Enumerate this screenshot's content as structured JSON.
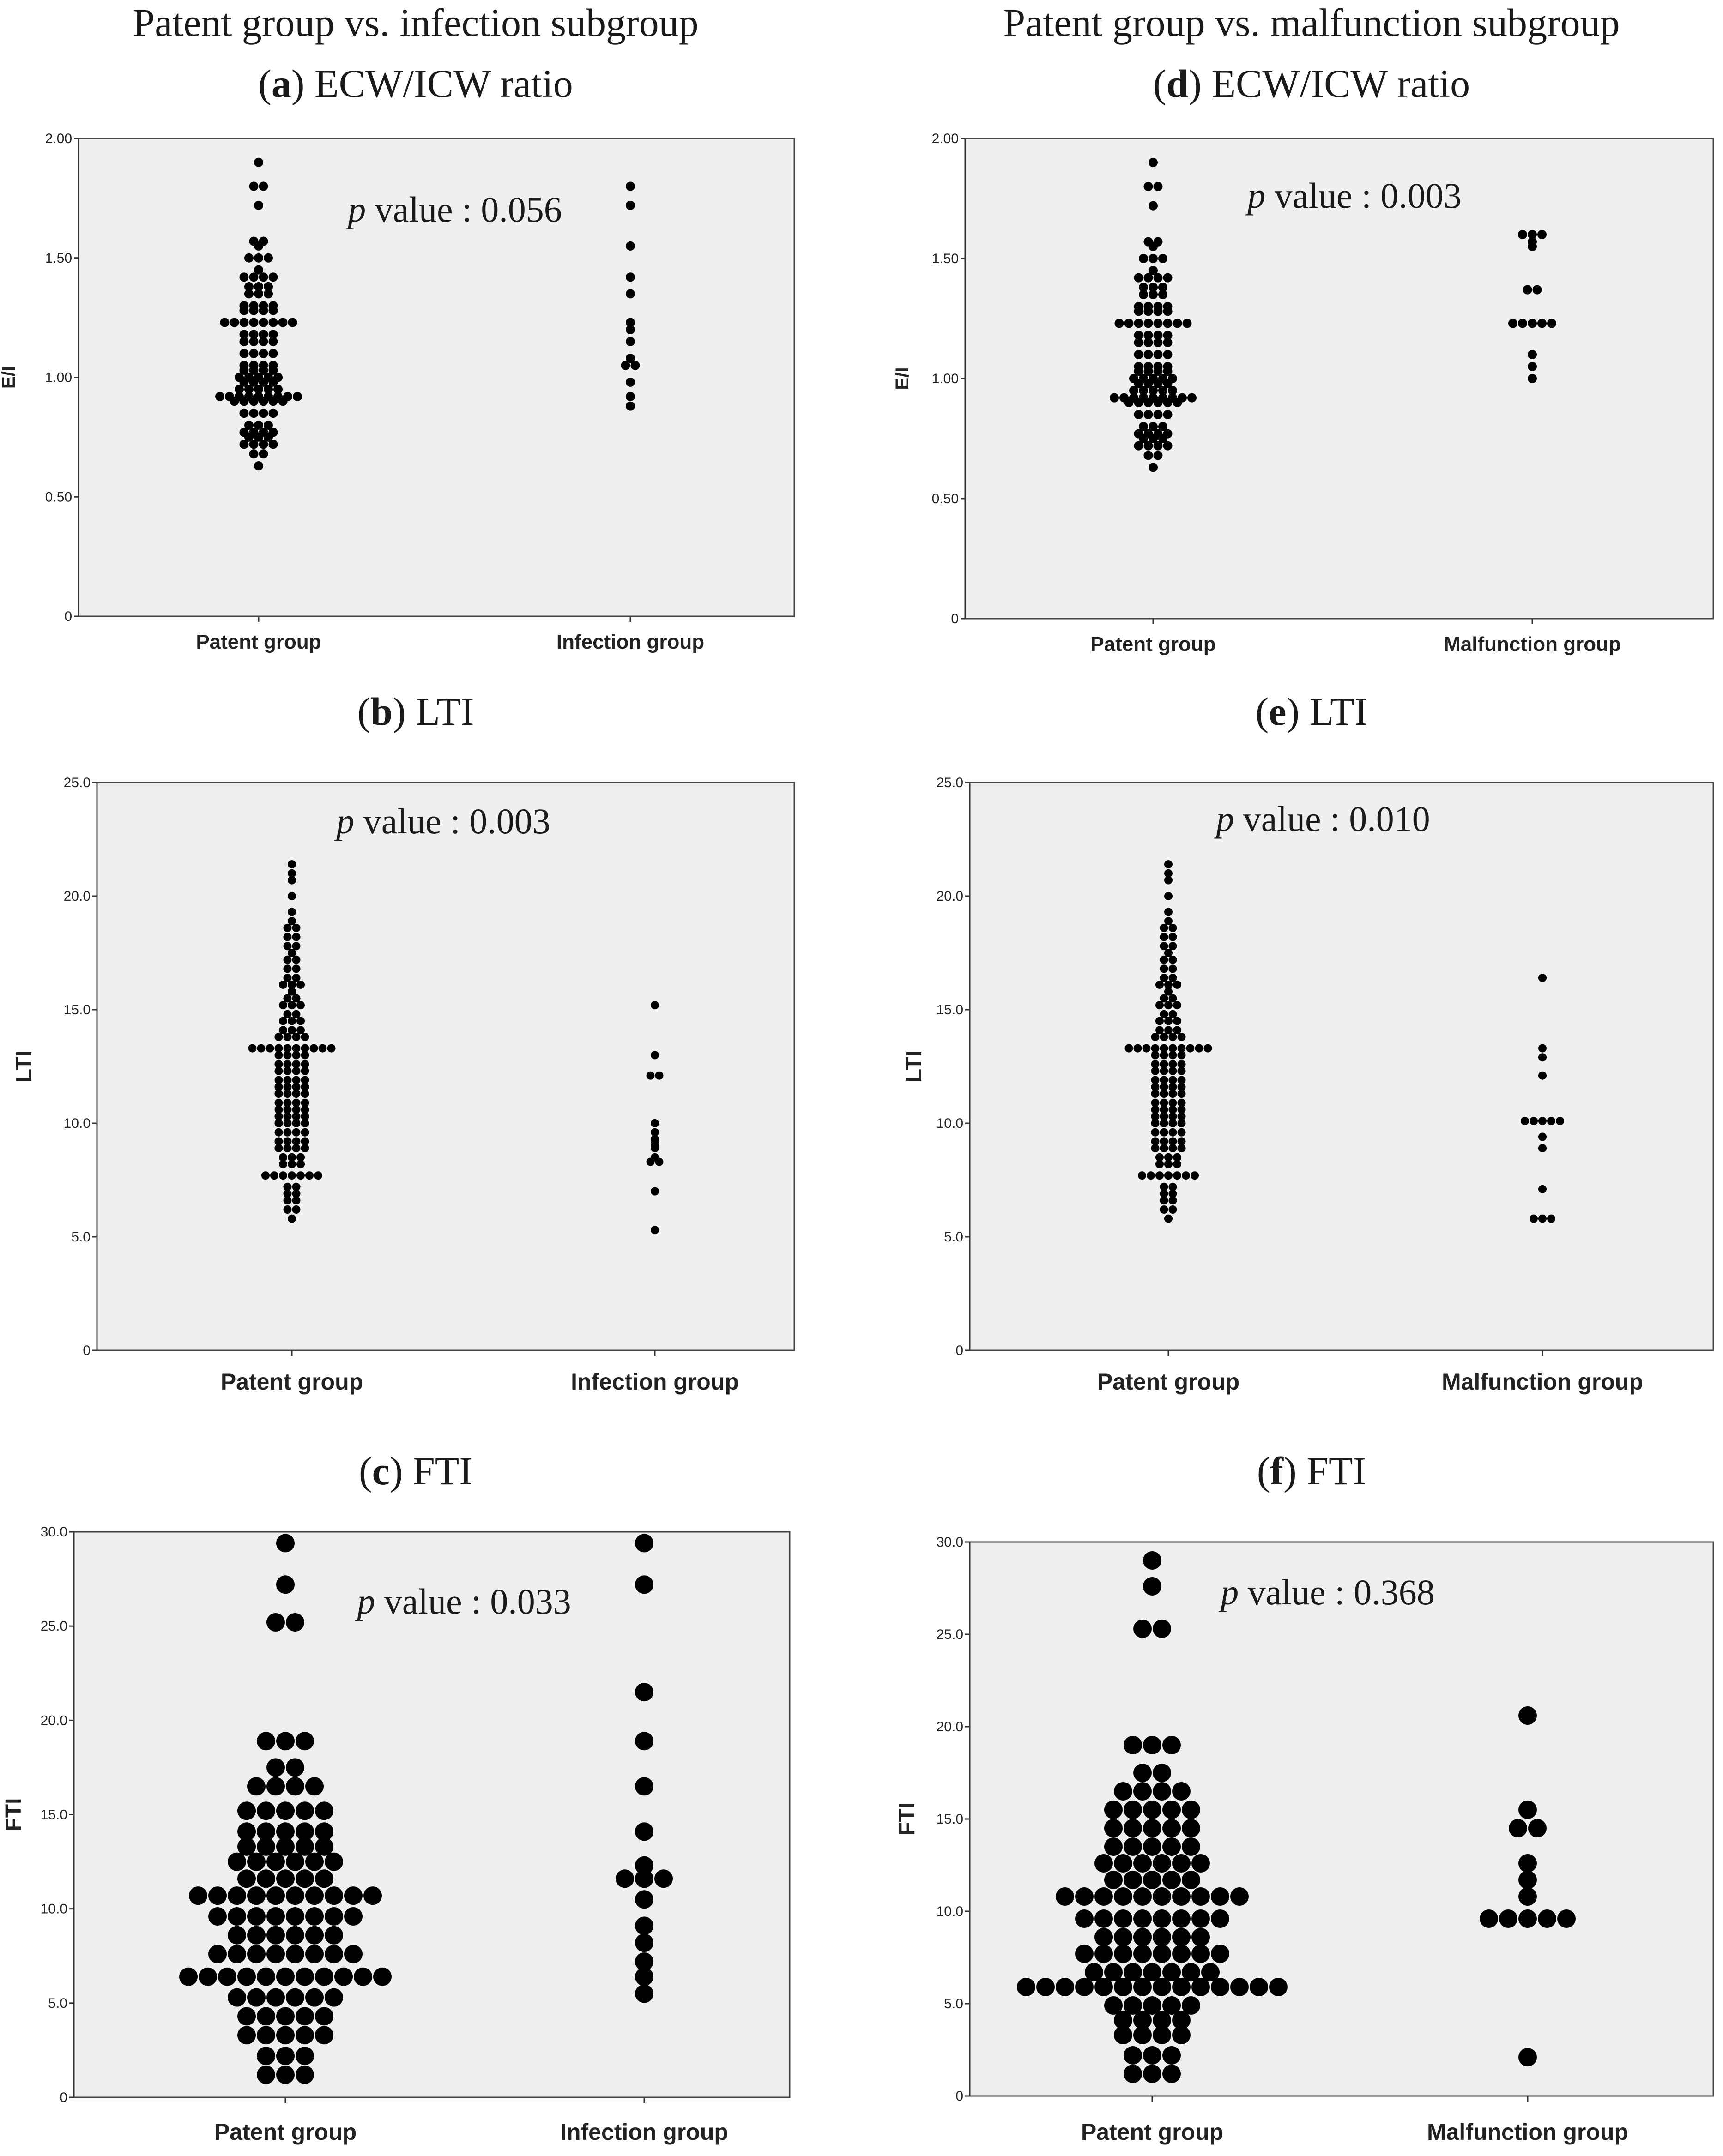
{
  "column_titles": [
    "Patent group vs. infection subgroup",
    "Patent group vs. malfunction subgroup"
  ],
  "chart_data": [
    {
      "id": "a",
      "letter": "a",
      "title": "ECW/ICW ratio",
      "type": "scatter",
      "ylabel": "E/I",
      "ylim": [
        0,
        2.0
      ],
      "yticks": [
        0,
        0.5,
        1.0,
        1.5,
        2.0
      ],
      "ytick_labels": [
        "0",
        "0.50",
        "1.00",
        "1.50",
        "2.00"
      ],
      "categories": [
        "Patent group",
        "Infection group"
      ],
      "p_prefix": "p",
      "p_text": " value : 0.056",
      "series": [
        {
          "name": "Patent group",
          "values": [
            1.9,
            1.8,
            1.8,
            1.72,
            1.57,
            1.57,
            1.55,
            1.5,
            1.5,
            1.5,
            1.45,
            1.42,
            1.42,
            1.42,
            1.42,
            1.38,
            1.38,
            1.38,
            1.35,
            1.35,
            1.35,
            1.3,
            1.3,
            1.3,
            1.3,
            1.28,
            1.28,
            1.28,
            1.28,
            1.23,
            1.23,
            1.23,
            1.23,
            1.23,
            1.23,
            1.23,
            1.23,
            1.18,
            1.18,
            1.18,
            1.18,
            1.15,
            1.15,
            1.15,
            1.15,
            1.1,
            1.1,
            1.1,
            1.1,
            1.05,
            1.05,
            1.05,
            1.05,
            1.03,
            1.03,
            1.03,
            1.03,
            1.0,
            1.0,
            1.0,
            1.0,
            1.0,
            0.98,
            0.98,
            0.98,
            0.98,
            0.95,
            0.95,
            0.95,
            0.95,
            0.95,
            0.92,
            0.92,
            0.92,
            0.92,
            0.92,
            0.92,
            0.92,
            0.92,
            0.92,
            0.9,
            0.9,
            0.9,
            0.9,
            0.9,
            0.9,
            0.85,
            0.85,
            0.85,
            0.85,
            0.8,
            0.8,
            0.8,
            0.77,
            0.77,
            0.77,
            0.77,
            0.75,
            0.75,
            0.75,
            0.72,
            0.72,
            0.72,
            0.72,
            0.68,
            0.68,
            0.63
          ]
        },
        {
          "name": "Infection group",
          "values": [
            1.8,
            1.72,
            1.55,
            1.42,
            1.35,
            1.23,
            1.2,
            1.15,
            1.08,
            1.05,
            1.05,
            0.98,
            0.92,
            0.88
          ]
        }
      ]
    },
    {
      "id": "d",
      "letter": "d",
      "title": "ECW/ICW ratio",
      "type": "scatter",
      "ylabel": "E/I",
      "ylim": [
        0,
        2.0
      ],
      "yticks": [
        0,
        0.5,
        1.0,
        1.5,
        2.0
      ],
      "ytick_labels": [
        "0",
        "0.50",
        "1.00",
        "1.50",
        "2.00"
      ],
      "categories": [
        "Patent group",
        "Malfunction group"
      ],
      "p_prefix": "p",
      "p_text": " value : 0.003",
      "series": [
        {
          "name": "Patent group",
          "values": [
            1.9,
            1.8,
            1.8,
            1.72,
            1.57,
            1.57,
            1.55,
            1.5,
            1.5,
            1.5,
            1.45,
            1.42,
            1.42,
            1.42,
            1.42,
            1.38,
            1.38,
            1.38,
            1.35,
            1.35,
            1.35,
            1.3,
            1.3,
            1.3,
            1.3,
            1.28,
            1.28,
            1.28,
            1.28,
            1.23,
            1.23,
            1.23,
            1.23,
            1.23,
            1.23,
            1.23,
            1.23,
            1.18,
            1.18,
            1.18,
            1.18,
            1.15,
            1.15,
            1.15,
            1.15,
            1.1,
            1.1,
            1.1,
            1.1,
            1.05,
            1.05,
            1.05,
            1.05,
            1.03,
            1.03,
            1.03,
            1.03,
            1.0,
            1.0,
            1.0,
            1.0,
            1.0,
            0.98,
            0.98,
            0.98,
            0.98,
            0.95,
            0.95,
            0.95,
            0.95,
            0.95,
            0.92,
            0.92,
            0.92,
            0.92,
            0.92,
            0.92,
            0.92,
            0.92,
            0.92,
            0.9,
            0.9,
            0.9,
            0.9,
            0.9,
            0.9,
            0.85,
            0.85,
            0.85,
            0.85,
            0.8,
            0.8,
            0.8,
            0.77,
            0.77,
            0.77,
            0.77,
            0.75,
            0.75,
            0.75,
            0.72,
            0.72,
            0.72,
            0.72,
            0.68,
            0.68,
            0.63
          ]
        },
        {
          "name": "Malfunction group",
          "values": [
            1.6,
            1.6,
            1.6,
            1.57,
            1.55,
            1.37,
            1.37,
            1.23,
            1.23,
            1.23,
            1.23,
            1.23,
            1.1,
            1.05,
            1.0
          ]
        }
      ]
    },
    {
      "id": "b",
      "letter": "b",
      "title": "LTI",
      "type": "scatter",
      "ylabel": "LTI",
      "ylim": [
        0,
        25.0
      ],
      "yticks": [
        0,
        5,
        10,
        15,
        20,
        25
      ],
      "ytick_labels": [
        "0",
        "5.0",
        "10.0",
        "15.0",
        "20.0",
        "25.0"
      ],
      "categories": [
        "Patent group",
        "Infection group"
      ],
      "p_prefix": "p",
      "p_text": " value : 0.003",
      "series": [
        {
          "name": "Patent group",
          "values": [
            21.4,
            21.0,
            20.7,
            20.0,
            19.3,
            18.9,
            18.6,
            18.6,
            18.2,
            18.2,
            17.8,
            17.8,
            17.5,
            17.2,
            17.2,
            16.8,
            16.8,
            16.4,
            16.4,
            16.1,
            16.1,
            16.1,
            15.8,
            15.5,
            15.5,
            15.2,
            15.2,
            15.2,
            14.8,
            14.8,
            14.5,
            14.5,
            14.5,
            14.1,
            14.1,
            14.1,
            13.8,
            13.8,
            13.8,
            13.8,
            13.3,
            13.3,
            13.3,
            13.3,
            13.3,
            13.3,
            13.3,
            13.3,
            13.3,
            13.3,
            13.0,
            13.0,
            13.0,
            13.0,
            12.6,
            12.6,
            12.6,
            12.6,
            12.3,
            12.3,
            12.3,
            12.3,
            11.9,
            11.9,
            11.9,
            11.9,
            11.6,
            11.6,
            11.6,
            11.6,
            11.3,
            11.3,
            11.3,
            11.3,
            10.9,
            10.9,
            10.9,
            10.9,
            10.6,
            10.6,
            10.6,
            10.6,
            10.3,
            10.3,
            10.3,
            10.3,
            10.0,
            10.0,
            10.0,
            10.0,
            9.6,
            9.6,
            9.6,
            9.6,
            9.2,
            9.2,
            9.2,
            9.2,
            8.9,
            8.9,
            8.9,
            8.9,
            8.5,
            8.5,
            8.5,
            8.2,
            8.2,
            8.2,
            7.7,
            7.7,
            7.7,
            7.7,
            7.7,
            7.7,
            7.7,
            7.2,
            7.2,
            6.9,
            6.9,
            6.6,
            6.6,
            6.2,
            6.2,
            5.8
          ]
        },
        {
          "name": "Infection group",
          "values": [
            15.2,
            13.0,
            12.1,
            12.1,
            10.0,
            9.6,
            9.3,
            9.2,
            9.0,
            8.9,
            8.5,
            8.3,
            8.3,
            7.0,
            5.3
          ]
        }
      ]
    },
    {
      "id": "e",
      "letter": "e",
      "title": "LTI",
      "type": "scatter",
      "ylabel": "LTI",
      "ylim": [
        0,
        25.0
      ],
      "yticks": [
        0,
        5,
        10,
        15,
        20,
        25
      ],
      "ytick_labels": [
        "0",
        "5.0",
        "10.0",
        "15.0",
        "20.0",
        "25.0"
      ],
      "categories": [
        "Patent group",
        "Malfunction group"
      ],
      "p_prefix": "p",
      "p_text": " value : 0.010",
      "series": [
        {
          "name": "Patent group",
          "values": [
            21.4,
            21.0,
            20.7,
            20.0,
            19.3,
            18.9,
            18.6,
            18.6,
            18.2,
            18.2,
            17.8,
            17.8,
            17.5,
            17.2,
            17.2,
            16.8,
            16.8,
            16.4,
            16.4,
            16.1,
            16.1,
            16.1,
            15.8,
            15.5,
            15.5,
            15.2,
            15.2,
            15.2,
            14.8,
            14.8,
            14.5,
            14.5,
            14.5,
            14.1,
            14.1,
            14.1,
            13.8,
            13.8,
            13.8,
            13.8,
            13.3,
            13.3,
            13.3,
            13.3,
            13.3,
            13.3,
            13.3,
            13.3,
            13.3,
            13.3,
            13.0,
            13.0,
            13.0,
            13.0,
            12.6,
            12.6,
            12.6,
            12.6,
            12.3,
            12.3,
            12.3,
            12.3,
            11.9,
            11.9,
            11.9,
            11.9,
            11.6,
            11.6,
            11.6,
            11.6,
            11.3,
            11.3,
            11.3,
            11.3,
            10.9,
            10.9,
            10.9,
            10.9,
            10.6,
            10.6,
            10.6,
            10.6,
            10.3,
            10.3,
            10.3,
            10.3,
            10.0,
            10.0,
            10.0,
            10.0,
            9.6,
            9.6,
            9.6,
            9.6,
            9.2,
            9.2,
            9.2,
            9.2,
            8.9,
            8.9,
            8.9,
            8.9,
            8.5,
            8.5,
            8.5,
            8.2,
            8.2,
            8.2,
            7.7,
            7.7,
            7.7,
            7.7,
            7.7,
            7.7,
            7.7,
            7.2,
            7.2,
            6.9,
            6.9,
            6.6,
            6.6,
            6.2,
            6.2,
            5.8
          ]
        },
        {
          "name": "Malfunction group",
          "values": [
            16.4,
            13.3,
            12.9,
            12.1,
            10.1,
            10.1,
            10.1,
            10.1,
            10.1,
            9.4,
            8.9,
            7.1,
            5.8,
            5.8,
            5.8
          ]
        }
      ]
    },
    {
      "id": "c",
      "letter": "c",
      "title": "FTI",
      "type": "scatter",
      "ylabel": "FTI",
      "ylim": [
        0,
        30.0
      ],
      "yticks": [
        0,
        5,
        10,
        15,
        20,
        25,
        30
      ],
      "ytick_labels": [
        "0",
        "5.0",
        "10.0",
        "15.0",
        "20.0",
        "25.0",
        "30.0"
      ],
      "categories": [
        "Patent group",
        "Infection group"
      ],
      "p_prefix": "p",
      "p_text": " value : 0.033",
      "series": [
        {
          "name": "Patent group",
          "values": [
            29.4,
            27.2,
            25.2,
            25.2,
            18.9,
            18.9,
            18.9,
            17.5,
            17.5,
            16.5,
            16.5,
            16.5,
            16.5,
            15.2,
            15.2,
            15.2,
            15.2,
            15.2,
            14.1,
            14.1,
            14.1,
            14.1,
            14.1,
            13.3,
            13.3,
            13.3,
            13.3,
            13.3,
            12.5,
            12.5,
            12.5,
            12.5,
            12.5,
            12.5,
            11.6,
            11.6,
            11.6,
            11.6,
            11.6,
            10.7,
            10.7,
            10.7,
            10.7,
            10.7,
            10.7,
            10.7,
            10.7,
            10.7,
            10.7,
            9.6,
            9.6,
            9.6,
            9.6,
            9.6,
            9.6,
            9.6,
            9.6,
            8.6,
            8.6,
            8.6,
            8.6,
            8.6,
            8.6,
            7.6,
            7.6,
            7.6,
            7.6,
            7.6,
            7.6,
            7.6,
            7.6,
            6.4,
            6.4,
            6.4,
            6.4,
            6.4,
            6.4,
            6.4,
            6.4,
            6.4,
            6.4,
            6.4,
            5.3,
            5.3,
            5.3,
            5.3,
            5.3,
            5.3,
            4.3,
            4.3,
            4.3,
            4.3,
            4.3,
            3.3,
            3.3,
            3.3,
            3.3,
            3.3,
            2.2,
            2.2,
            2.2,
            1.2,
            1.2,
            1.2
          ]
        },
        {
          "name": "Infection group",
          "values": [
            29.4,
            27.2,
            21.5,
            18.9,
            16.5,
            14.1,
            12.3,
            11.6,
            11.6,
            11.6,
            10.5,
            9.1,
            8.2,
            7.2,
            6.4,
            5.5
          ]
        }
      ]
    },
    {
      "id": "f",
      "letter": "f",
      "title": "FTI",
      "type": "scatter",
      "ylabel": "FTI",
      "ylim": [
        0,
        30.0
      ],
      "yticks": [
        0,
        5,
        10,
        15,
        20,
        25,
        30
      ],
      "ytick_labels": [
        "0",
        "5.0",
        "10.0",
        "15.0",
        "20.0",
        "25.0",
        "30.0"
      ],
      "categories": [
        "Patent group",
        "Malfunction group"
      ],
      "p_prefix": "p",
      "p_text": " value : 0.368",
      "series": [
        {
          "name": "Patent group",
          "values": [
            29.0,
            27.6,
            25.3,
            25.3,
            19.0,
            19.0,
            19.0,
            17.5,
            17.5,
            16.5,
            16.5,
            16.5,
            16.5,
            15.5,
            15.5,
            15.5,
            15.5,
            15.5,
            14.5,
            14.5,
            14.5,
            14.5,
            14.5,
            13.5,
            13.5,
            13.5,
            13.5,
            13.5,
            12.6,
            12.6,
            12.6,
            12.6,
            12.6,
            12.6,
            11.7,
            11.7,
            11.7,
            11.7,
            11.7,
            10.8,
            10.8,
            10.8,
            10.8,
            10.8,
            10.8,
            10.8,
            10.8,
            10.8,
            10.8,
            9.6,
            9.6,
            9.6,
            9.6,
            9.6,
            9.6,
            9.6,
            9.6,
            8.6,
            8.6,
            8.6,
            8.6,
            8.6,
            8.6,
            7.7,
            7.7,
            7.7,
            7.7,
            7.7,
            7.7,
            7.7,
            7.7,
            6.7,
            6.7,
            6.7,
            6.7,
            6.7,
            6.7,
            6.7,
            5.9,
            5.9,
            5.9,
            5.9,
            5.9,
            5.9,
            5.9,
            5.9,
            5.9,
            5.9,
            5.9,
            5.9,
            5.9,
            5.9,
            4.9,
            4.9,
            4.9,
            4.9,
            4.9,
            4.1,
            4.1,
            4.1,
            4.1,
            3.3,
            3.3,
            3.3,
            3.3,
            2.2,
            2.2,
            2.2,
            1.2,
            1.2,
            1.2
          ]
        },
        {
          "name": "Malfunction group",
          "values": [
            20.6,
            15.5,
            14.5,
            14.5,
            12.6,
            11.7,
            10.8,
            9.6,
            9.6,
            9.6,
            9.6,
            9.6,
            2.1
          ]
        }
      ]
    }
  ]
}
